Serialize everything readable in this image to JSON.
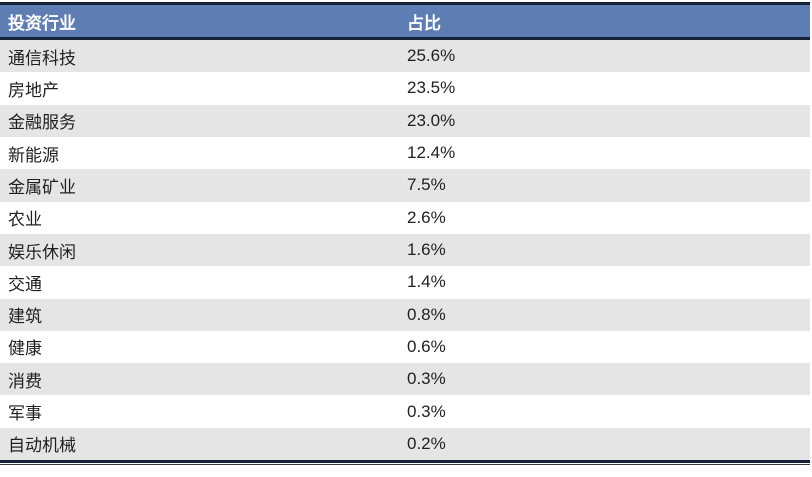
{
  "colors": {
    "header_bg": "#5d7db3",
    "header_text": "#ffffff",
    "dark_rule": "#152238",
    "stripe_gray": "#e5e5e5",
    "body_text": "#1f1f1f"
  },
  "table": {
    "columns": {
      "industry": "投资行业",
      "share": "占比"
    },
    "rows": [
      {
        "industry": "通信科技",
        "share": "25.6%"
      },
      {
        "industry": "房地产",
        "share": "23.5%"
      },
      {
        "industry": "金融服务",
        "share": "23.0%"
      },
      {
        "industry": "新能源",
        "share": "12.4%"
      },
      {
        "industry": "金属矿业",
        "share": "7.5%"
      },
      {
        "industry": "农业",
        "share": "2.6%"
      },
      {
        "industry": "娱乐休闲",
        "share": "1.6%"
      },
      {
        "industry": "交通",
        "share": "1.4%"
      },
      {
        "industry": "建筑",
        "share": "0.8%"
      },
      {
        "industry": "健康",
        "share": "0.6%"
      },
      {
        "industry": "消费",
        "share": "0.3%"
      },
      {
        "industry": "军事",
        "share": "0.3%"
      },
      {
        "industry": "自动机械",
        "share": "0.2%"
      }
    ]
  },
  "chart_data": {
    "type": "table",
    "title": "",
    "columns": [
      "投资行业",
      "占比"
    ],
    "categories": [
      "通信科技",
      "房地产",
      "金融服务",
      "新能源",
      "金属矿业",
      "农业",
      "娱乐休闲",
      "交通",
      "建筑",
      "健康",
      "消费",
      "军事",
      "自动机械"
    ],
    "values": [
      25.6,
      23.5,
      23.0,
      12.4,
      7.5,
      2.6,
      1.6,
      1.4,
      0.8,
      0.6,
      0.3,
      0.3,
      0.2
    ],
    "values_display": [
      "25.6%",
      "23.5%",
      "23.0%",
      "12.4%",
      "7.5%",
      "2.6%",
      "1.6%",
      "1.4%",
      "0.8%",
      "0.6%",
      "0.3%",
      "0.3%",
      "0.2%"
    ],
    "unit": "%",
    "layout_hints": {
      "stripe_rows": true,
      "header_style": "blue-band-white-bold-text",
      "top_rule": "thick-dark-navy",
      "bottom_rule": "thick-plus-thin-double"
    }
  }
}
